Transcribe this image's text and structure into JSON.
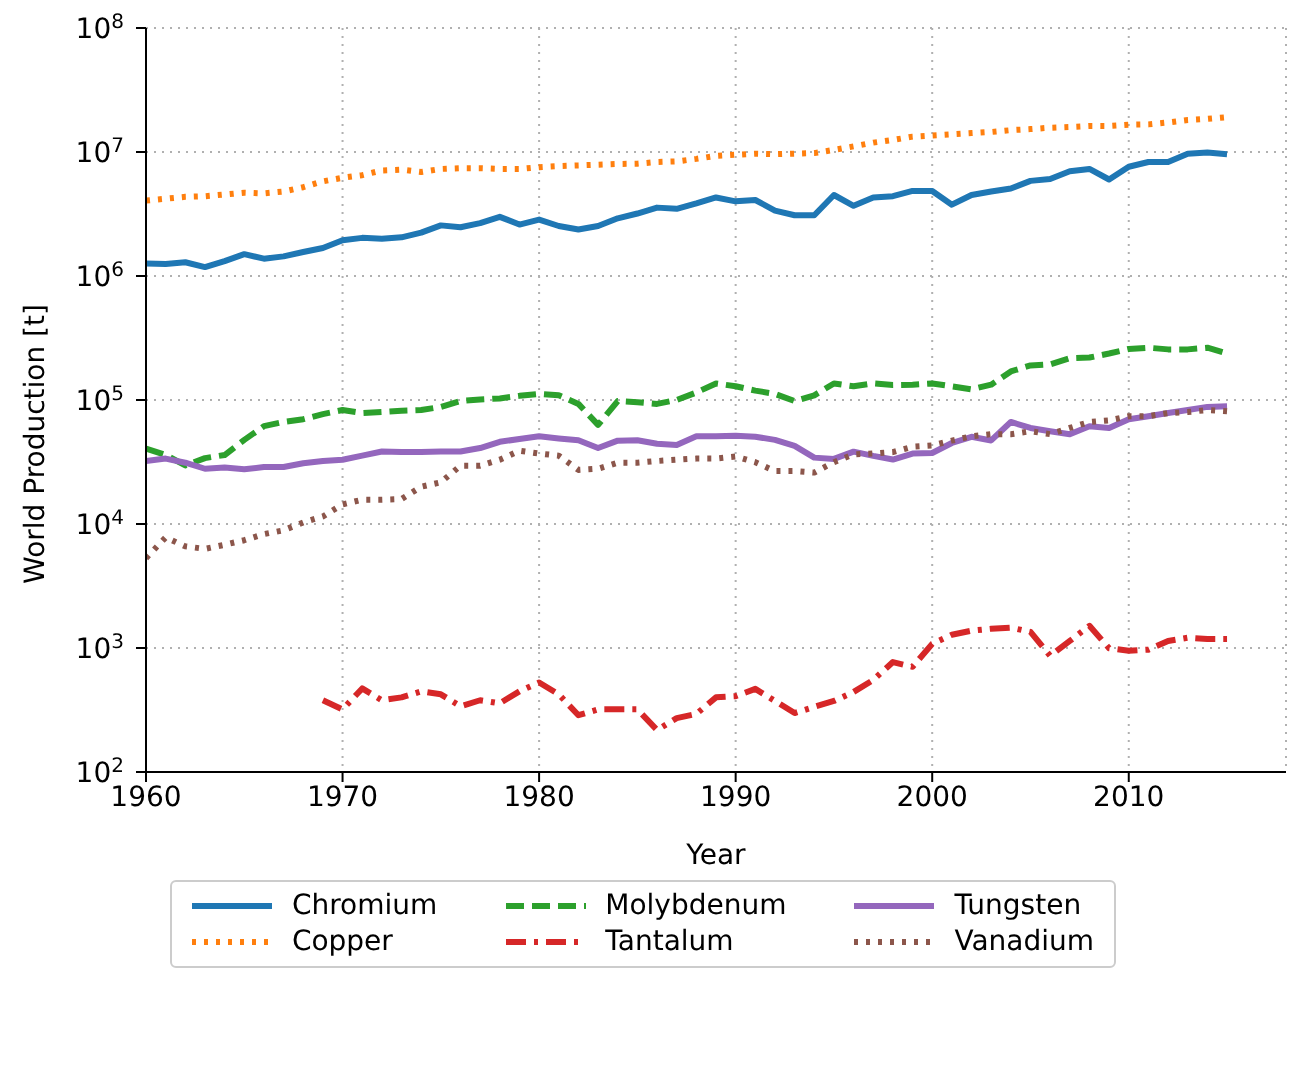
{
  "chart_data": {
    "type": "line",
    "xlabel": "Year",
    "ylabel": "World Production [t]",
    "log": "y",
    "grid": true,
    "legend": "bottom",
    "xlim": [
      1960,
      2018
    ],
    "xticks": [
      1960,
      1970,
      1980,
      1990,
      2000,
      2010
    ],
    "ylim": [
      100,
      100000000
    ],
    "yticks": [
      {
        "value": 100,
        "label": "10$^{2}$"
      },
      {
        "value": 1000,
        "label": "10$^{3}$"
      },
      {
        "value": 10000,
        "label": "10$^{4}$"
      },
      {
        "value": 100000,
        "label": "10$^{5}$"
      },
      {
        "value": 1000000,
        "label": "10$^{6}$"
      },
      {
        "value": 10000000,
        "label": "10$^{7}$"
      },
      {
        "value": 100000000,
        "label": "10$^{8}$"
      }
    ],
    "x": [
      1960,
      1961,
      1962,
      1963,
      1964,
      1965,
      1966,
      1967,
      1968,
      1969,
      1970,
      1971,
      1972,
      1973,
      1974,
      1975,
      1976,
      1977,
      1978,
      1979,
      1980,
      1981,
      1982,
      1983,
      1984,
      1985,
      1986,
      1987,
      1988,
      1989,
      1990,
      1991,
      1992,
      1993,
      1994,
      1995,
      1996,
      1997,
      1998,
      1999,
      2000,
      2001,
      2002,
      2003,
      2004,
      2005,
      2006,
      2007,
      2008,
      2009,
      2010,
      2011,
      2012,
      2013,
      2014,
      2015
    ],
    "series": [
      {
        "name": "Chromium",
        "color": "#1f77b4",
        "line_style": "solid",
        "values": [
          1260000,
          1250000,
          1290000,
          1180000,
          1320000,
          1500000,
          1380000,
          1440000,
          1560000,
          1680000,
          1940000,
          2030000,
          2000000,
          2050000,
          2240000,
          2560000,
          2470000,
          2670000,
          3000000,
          2600000,
          2850000,
          2530000,
          2370000,
          2530000,
          2920000,
          3190000,
          3560000,
          3480000,
          3850000,
          4300000,
          4000000,
          4100000,
          3370000,
          3090000,
          3090000,
          4500000,
          3680000,
          4300000,
          4400000,
          4850000,
          4850000,
          3760000,
          4500000,
          4800000,
          5070000,
          5850000,
          6050000,
          7000000,
          7300000,
          6000000,
          7600000,
          8300000,
          8300000,
          9700000,
          9900000,
          9600000
        ]
      },
      {
        "name": "Copper",
        "color": "#ff7f0e",
        "line_style": "dotted",
        "values": [
          4060000,
          4200000,
          4350000,
          4400000,
          4540000,
          4700000,
          4640000,
          4800000,
          5200000,
          5800000,
          6200000,
          6500000,
          7100000,
          7200000,
          6900000,
          7300000,
          7400000,
          7400000,
          7300000,
          7300000,
          7550000,
          7700000,
          7800000,
          7900000,
          8000000,
          8050000,
          8300000,
          8400000,
          8800000,
          9300000,
          9500000,
          9700000,
          9600000,
          9700000,
          9800000,
          10400000,
          11100000,
          11900000,
          12500000,
          13300000,
          13600000,
          13900000,
          14200000,
          14500000,
          15000000,
          15300000,
          15700000,
          15900000,
          16200000,
          16200000,
          16600000,
          16700000,
          17300000,
          18100000,
          18500000,
          19100000
        ]
      },
      {
        "name": "Molybdenum",
        "color": "#2ca02c",
        "line_style": "dashed",
        "values": [
          40500,
          36000,
          29700,
          34000,
          36000,
          47700,
          61500,
          66500,
          70000,
          77000,
          83000,
          78500,
          80000,
          82000,
          83000,
          88000,
          98000,
          101000,
          103000,
          108000,
          112000,
          109000,
          93000,
          63000,
          98000,
          96000,
          93000,
          100000,
          115000,
          136000,
          129000,
          119000,
          112000,
          98000,
          109000,
          136000,
          129000,
          136000,
          132000,
          133000,
          136000,
          129000,
          122000,
          133000,
          170000,
          190000,
          194000,
          217000,
          220000,
          237000,
          258000,
          264000,
          256000,
          256000,
          264000,
          237000
        ]
      },
      {
        "name": "Tantalum",
        "color": "#d62728",
        "line_style": "dashdot",
        "values": [
          null,
          null,
          null,
          null,
          null,
          null,
          null,
          null,
          null,
          379,
          320,
          472,
          379,
          400,
          447,
          423,
          339,
          379,
          358,
          447,
          527,
          423,
          287,
          320,
          320,
          320,
          218,
          272,
          294,
          400,
          409,
          468,
          374,
          299,
          335,
          374,
          442,
          553,
          770,
          705,
          1080,
          1280,
          1380,
          1430,
          1460,
          1350,
          865,
          1140,
          1510,
          995,
          950,
          970,
          1140,
          1210,
          1180,
          1180
        ]
      },
      {
        "name": "Tungsten",
        "color": "#9467bd",
        "line_style": "solid",
        "values": [
          32200,
          33700,
          31200,
          27900,
          28500,
          27600,
          28800,
          28800,
          30900,
          32200,
          33000,
          35600,
          38400,
          38000,
          38000,
          38400,
          38400,
          41000,
          46000,
          48500,
          51000,
          49000,
          47400,
          41000,
          47000,
          47400,
          44400,
          43400,
          51000,
          51000,
          51600,
          50500,
          47700,
          42700,
          34300,
          33500,
          38300,
          35400,
          33100,
          37000,
          37400,
          45000,
          50500,
          47200,
          66500,
          59500,
          56000,
          53000,
          61500,
          59500,
          70000,
          74000,
          78500,
          83000,
          88000,
          89000
        ]
      },
      {
        "name": "Vanadium",
        "color": "#8c564b",
        "line_style": "dotted",
        "values": [
          5300,
          7800,
          6600,
          6300,
          6800,
          7400,
          8300,
          8900,
          10300,
          11500,
          14400,
          15700,
          15700,
          15900,
          20000,
          21700,
          29500,
          29500,
          33000,
          39000,
          37000,
          35600,
          27300,
          27900,
          31200,
          31200,
          32200,
          33000,
          33700,
          33700,
          35000,
          31500,
          26700,
          26700,
          26000,
          31500,
          36500,
          37000,
          38000,
          42000,
          43000,
          47000,
          51000,
          53000,
          53000,
          56000,
          53000,
          59500,
          66500,
          68500,
          74000,
          74000,
          78500,
          80000,
          83000,
          81000
        ]
      }
    ]
  }
}
